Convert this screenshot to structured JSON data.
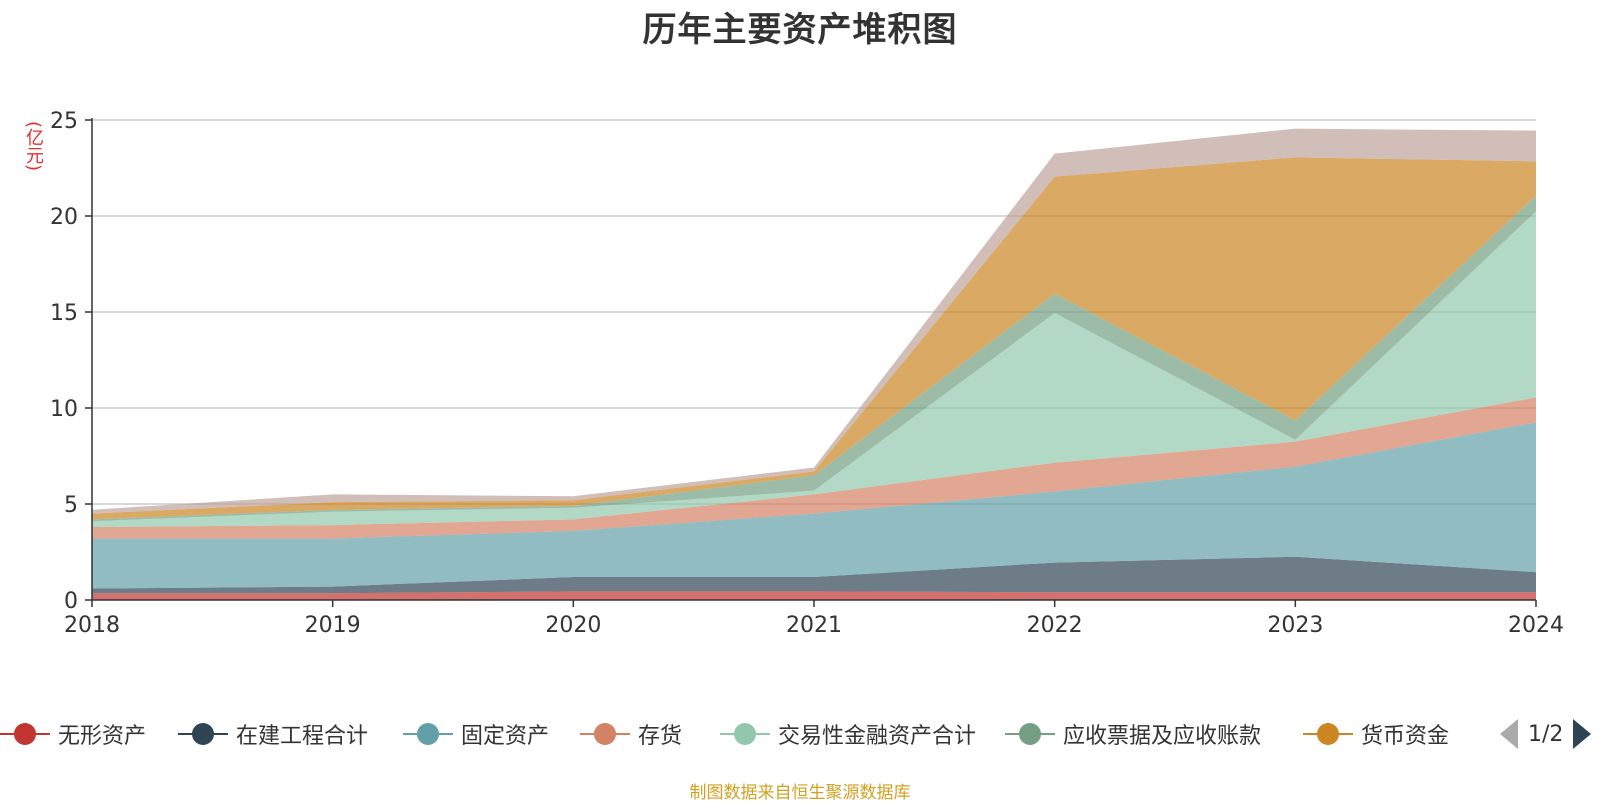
{
  "chart_data": {
    "type": "area",
    "stacked": true,
    "title": "历年主要资产堆积图",
    "y_unit_label": "(亿元)",
    "x": [
      "2018",
      "2019",
      "2020",
      "2021",
      "2022",
      "2023",
      "2024"
    ],
    "ylim": [
      0,
      25
    ],
    "yticks": [
      "0",
      "5",
      "10",
      "15",
      "20",
      "25"
    ],
    "grid": true,
    "legend_position": "bottom",
    "series": [
      {
        "name": "无形资产",
        "color": "#c23531",
        "values": [
          0.35,
          0.35,
          0.45,
          0.45,
          0.4,
          0.4,
          0.4
        ]
      },
      {
        "name": "在建工程合计",
        "color": "#2f4554",
        "values": [
          0.25,
          0.35,
          0.75,
          0.75,
          1.55,
          1.85,
          1.05
        ]
      },
      {
        "name": "固定资产",
        "color": "#61a0a8",
        "values": [
          2.6,
          2.5,
          2.4,
          3.3,
          3.7,
          4.7,
          7.8
        ]
      },
      {
        "name": "存货",
        "color": "#d48265",
        "values": [
          0.6,
          0.7,
          0.6,
          1.0,
          1.5,
          1.3,
          1.3
        ]
      },
      {
        "name": "交易性金融资产合计",
        "color": "#91c7ae",
        "values": [
          0.3,
          0.7,
          0.6,
          0.2,
          7.8,
          0.1,
          9.7
        ]
      },
      {
        "name": "应收票据及应收账款",
        "color": "#749f83",
        "values": [
          0.1,
          0.1,
          0.1,
          0.8,
          1.0,
          1.0,
          0.8
        ]
      },
      {
        "name": "货币资金",
        "color": "#ca8622",
        "values": [
          0.3,
          0.4,
          0.3,
          0.2,
          6.1,
          13.7,
          1.8
        ]
      },
      {
        "name": "",
        "color": "#bda29a",
        "values": [
          0.2,
          0.4,
          0.2,
          0.2,
          1.2,
          1.5,
          1.6
        ]
      }
    ]
  },
  "legend": {
    "page_indicator": "1/2"
  },
  "footer": {
    "source": "制图数据来自恒生聚源数据库"
  }
}
